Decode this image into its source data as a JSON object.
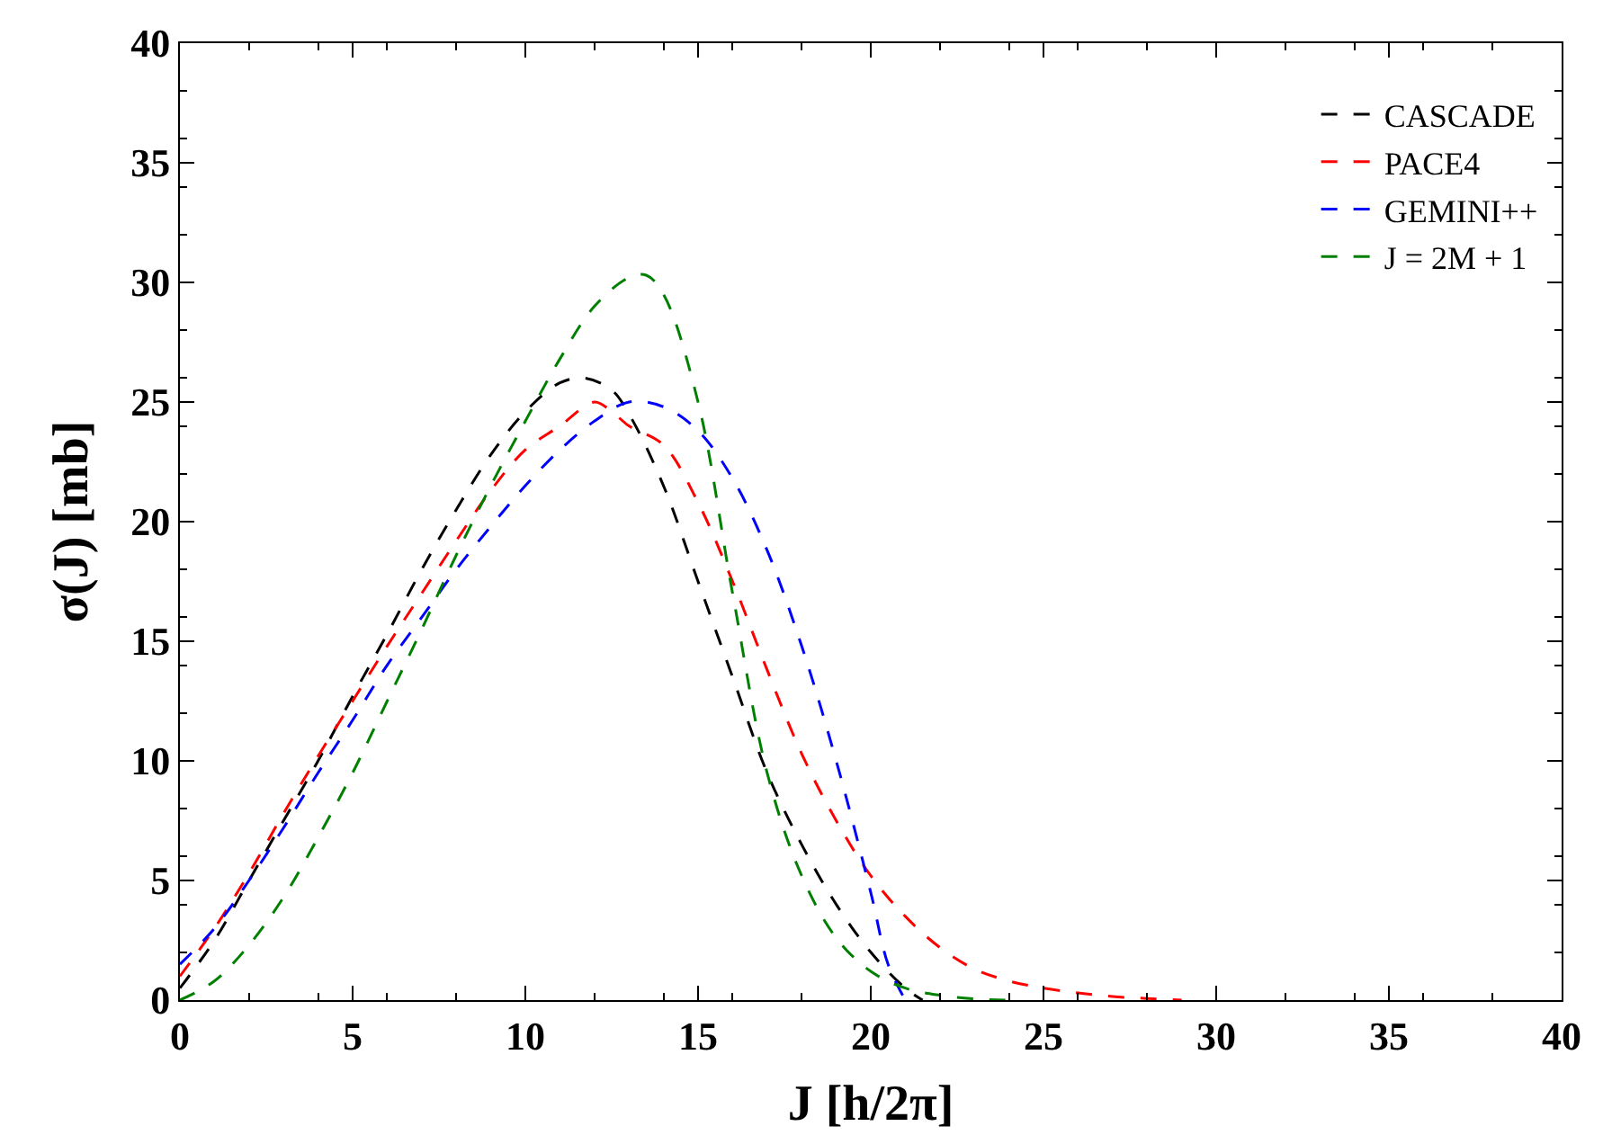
{
  "chart_data": {
    "type": "line",
    "xlabel": "J [h/2π]",
    "ylabel": "σ(J) [mb]",
    "xlim": [
      0,
      40
    ],
    "ylim": [
      0,
      40
    ],
    "xticks": [
      0,
      5,
      10,
      15,
      20,
      25,
      30,
      35,
      40
    ],
    "yticks": [
      0,
      5,
      10,
      15,
      20,
      25,
      30,
      35,
      40
    ],
    "legend": "top right",
    "marker": "none",
    "line_style": "dashed",
    "series": [
      {
        "name": "CASCADE",
        "color": "#000000",
        "x": [
          0,
          1,
          2,
          3,
          4,
          5,
          6,
          7,
          8,
          9,
          10,
          11,
          11.7,
          12.5,
          13,
          14,
          15,
          16,
          17,
          18,
          19,
          20,
          21,
          21.5
        ],
        "values": [
          0.5,
          2.5,
          5,
          7.5,
          10,
          12.7,
          15.3,
          18,
          20.5,
          22.8,
          24.6,
          25.8,
          26,
          25.5,
          24.5,
          21.5,
          17.5,
          13.5,
          9.5,
          6.5,
          4,
          2,
          0.5,
          0
        ]
      },
      {
        "name": "PACE4",
        "color": "#ff0000",
        "x": [
          0,
          1,
          2,
          3,
          4,
          5,
          6,
          7,
          8,
          9,
          10,
          11,
          12,
          12.5,
          13,
          14,
          15,
          16,
          17,
          18,
          19,
          20,
          21,
          22,
          23,
          24,
          25,
          26,
          27,
          28,
          29
        ],
        "values": [
          1,
          3,
          5.3,
          7.8,
          10.2,
          12.5,
          14.8,
          17,
          19.2,
          21.3,
          23,
          24,
          25,
          24.6,
          24,
          23.2,
          20.8,
          17.5,
          13.8,
          10.3,
          7.5,
          5.2,
          3.5,
          2.2,
          1.3,
          0.8,
          0.5,
          0.3,
          0.15,
          0.07,
          0
        ]
      },
      {
        "name": "GEMINI++",
        "color": "#0000ff",
        "x": [
          0,
          1,
          2,
          3,
          4,
          5,
          6,
          7,
          8,
          9,
          10,
          11,
          12,
          13,
          14,
          15,
          16,
          17,
          18,
          19,
          20,
          20.5,
          21
        ],
        "values": [
          1.5,
          3,
          5,
          7.2,
          9.5,
          11.7,
          14,
          16,
          18,
          19.8,
          21.5,
          23,
          24.2,
          25,
          24.8,
          23.8,
          21.8,
          18.8,
          14.8,
          10,
          4.5,
          1.5,
          0
        ]
      },
      {
        "name": "J = 2M + 1",
        "color": "#008000",
        "x": [
          0,
          1,
          2,
          3,
          4,
          5,
          6,
          7,
          8,
          9,
          10,
          11,
          12,
          13,
          13.5,
          14,
          15,
          16,
          17,
          18,
          19,
          20,
          21,
          22,
          23,
          24
        ],
        "values": [
          0,
          0.8,
          2.3,
          4.3,
          6.8,
          9.5,
          12.5,
          15.5,
          18.6,
          21.5,
          24.2,
          26.8,
          29,
          30.2,
          30.3,
          29.5,
          25,
          17,
          9.5,
          5.2,
          2.6,
          1.2,
          0.5,
          0.2,
          0.05,
          0
        ]
      }
    ]
  }
}
